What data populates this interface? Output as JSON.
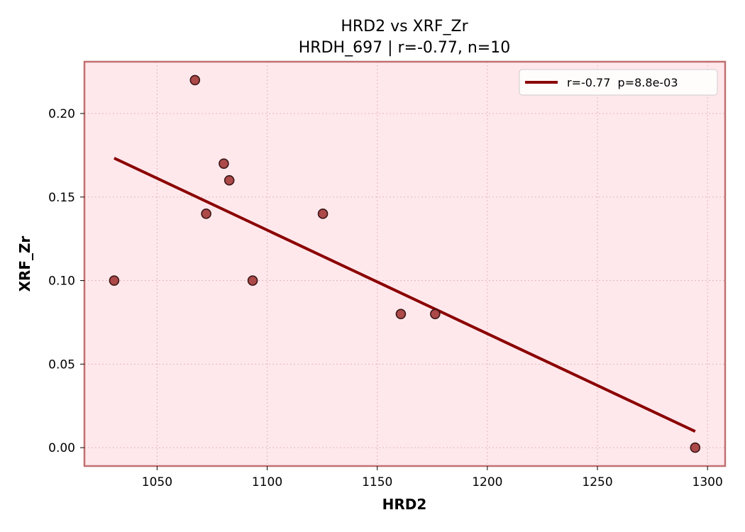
{
  "chart_data": {
    "type": "scatter",
    "title": "HRD2 vs XRF_Zr",
    "subtitle": "HRDH_697 | r=-0.77, n=10",
    "xlabel": "HRD2",
    "ylabel": "XRF_Zr",
    "xlim": [
      1017,
      1308
    ],
    "ylim": [
      -0.011,
      0.231
    ],
    "xticks": [
      1050,
      1100,
      1150,
      1200,
      1250,
      1300
    ],
    "xtick_labels": [
      "1050",
      "1100",
      "1150",
      "1200",
      "1250",
      "1300"
    ],
    "yticks": [
      0.0,
      0.05,
      0.1,
      0.15,
      0.2
    ],
    "ytick_labels": [
      "0.00",
      "0.05",
      "0.10",
      "0.15",
      "0.20"
    ],
    "grid": true,
    "legend_position": "top-right",
    "series": [
      {
        "x": [
          1030.5,
          1067.2,
          1072.3,
          1080.3,
          1082.8,
          1093.4,
          1125.3,
          1160.7,
          1176.3,
          1294.4
        ],
        "y": [
          0.1,
          0.22,
          0.14,
          0.17,
          0.16,
          0.1,
          0.14,
          0.08,
          0.08,
          0.0
        ]
      }
    ],
    "fit_line": {
      "label": "r=-0.77  p=8.8e-03",
      "x": [
        1030.5,
        1294.4
      ],
      "y": [
        0.1733,
        0.0097
      ]
    },
    "colors": {
      "background": "#ffe8ec",
      "frame": "#c07070",
      "point_fill": "#a84040",
      "point_edge": "#3a1515",
      "fit_line": "#8b0000",
      "grid": "#e0b8bc"
    }
  }
}
